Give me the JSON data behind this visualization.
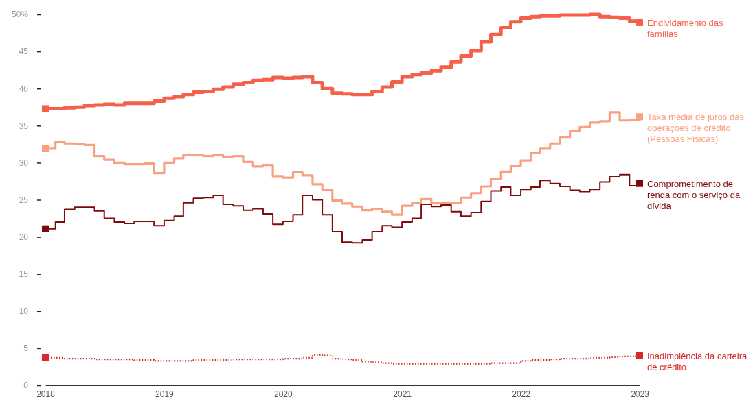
{
  "chart_data": {
    "type": "step",
    "xlim": [
      "2018-01",
      "2023-01"
    ],
    "xticks": [
      {
        "value": "2018-01",
        "label": "2018"
      },
      {
        "value": "2019-01",
        "label": "2019"
      },
      {
        "value": "2020-01",
        "label": "2020"
      },
      {
        "value": "2021-01",
        "label": "2021"
      },
      {
        "value": "2022-01",
        "label": "2022"
      },
      {
        "value": "2023-01",
        "label": "2023"
      }
    ],
    "ylim": [
      0,
      50
    ],
    "yticks": [
      0,
      5,
      10,
      15,
      20,
      25,
      30,
      35,
      40,
      45,
      {
        "value": 50,
        "label": "50%"
      }
    ],
    "grid": false,
    "x": [
      "2018-01",
      "2018-02",
      "2018-03",
      "2018-04",
      "2018-05",
      "2018-06",
      "2018-07",
      "2018-08",
      "2018-09",
      "2018-10",
      "2018-11",
      "2018-12",
      "2019-01",
      "2019-02",
      "2019-03",
      "2019-04",
      "2019-05",
      "2019-06",
      "2019-07",
      "2019-08",
      "2019-09",
      "2019-10",
      "2019-11",
      "2019-12",
      "2020-01",
      "2020-02",
      "2020-03",
      "2020-04",
      "2020-05",
      "2020-06",
      "2020-07",
      "2020-08",
      "2020-09",
      "2020-10",
      "2020-11",
      "2020-12",
      "2021-01",
      "2021-02",
      "2021-03",
      "2021-04",
      "2021-05",
      "2021-06",
      "2021-07",
      "2021-08",
      "2021-09",
      "2021-10",
      "2021-11",
      "2021-12",
      "2022-01",
      "2022-02",
      "2022-03",
      "2022-04",
      "2022-05",
      "2022-06",
      "2022-07",
      "2022-08",
      "2022-09",
      "2022-10",
      "2022-11",
      "2022-12",
      "2023-01"
    ],
    "series": [
      {
        "name": "Endividamento das famílias",
        "color": "#f4604a",
        "line_style": "solid",
        "values": [
          37.3,
          37.3,
          37.4,
          37.5,
          37.7,
          37.8,
          37.9,
          37.8,
          38.0,
          38.0,
          38.0,
          38.3,
          38.7,
          38.9,
          39.2,
          39.5,
          39.6,
          39.9,
          40.2,
          40.6,
          40.8,
          41.1,
          41.2,
          41.5,
          41.4,
          41.5,
          41.6,
          40.8,
          40.0,
          39.4,
          39.3,
          39.2,
          39.2,
          39.6,
          40.2,
          40.9,
          41.6,
          41.9,
          42.1,
          42.4,
          42.9,
          43.6,
          44.4,
          45.1,
          46.3,
          47.3,
          48.2,
          49.0,
          49.5,
          49.7,
          49.8,
          49.8,
          49.9,
          49.9,
          49.9,
          50.0,
          49.7,
          49.6,
          49.5,
          49.1,
          48.9
        ]
      },
      {
        "name": "Taxa média de juros das operações de crédito (Pessoas Físicas)",
        "color": "#f9a080",
        "line_style": "solid",
        "values": [
          31.9,
          32.8,
          32.6,
          32.5,
          32.4,
          30.9,
          30.4,
          30.0,
          29.8,
          29.8,
          29.9,
          28.6,
          30.0,
          30.6,
          31.1,
          31.1,
          30.9,
          31.1,
          30.8,
          30.9,
          30.1,
          29.5,
          29.7,
          28.2,
          28.0,
          28.7,
          28.3,
          27.1,
          26.3,
          24.9,
          24.5,
          24.1,
          23.6,
          23.8,
          23.4,
          23.0,
          24.2,
          24.6,
          25.1,
          24.6,
          24.6,
          24.6,
          25.3,
          25.9,
          26.8,
          27.8,
          28.8,
          29.6,
          30.3,
          31.3,
          31.9,
          32.6,
          33.4,
          34.3,
          34.8,
          35.4,
          35.6,
          36.8,
          35.7,
          35.8,
          36.2
        ]
      },
      {
        "name": "Comprometimento de renda com o serviço da dívida",
        "color": "#7f0a0a",
        "line_style": "solid",
        "values": [
          21.1,
          22.0,
          23.7,
          24.0,
          24.0,
          23.5,
          22.5,
          22.0,
          21.8,
          22.1,
          22.1,
          21.5,
          22.2,
          22.8,
          24.6,
          25.2,
          25.3,
          25.6,
          24.4,
          24.2,
          23.6,
          23.8,
          23.1,
          21.7,
          22.1,
          23.0,
          25.6,
          25.0,
          23.0,
          20.7,
          19.3,
          19.2,
          19.6,
          20.7,
          21.5,
          21.3,
          22.0,
          22.5,
          24.4,
          24.1,
          24.3,
          23.4,
          22.8,
          23.3,
          24.8,
          26.2,
          26.7,
          25.6,
          26.4,
          26.7,
          27.6,
          27.2,
          26.8,
          26.3,
          26.1,
          26.4,
          27.4,
          28.2,
          28.4,
          26.9,
          27.2
        ]
      },
      {
        "name": "Inadimplência da carteira de crédito",
        "color": "#d42a2a",
        "line_style": "dotted",
        "values": [
          3.7,
          3.7,
          3.6,
          3.6,
          3.6,
          3.5,
          3.5,
          3.5,
          3.5,
          3.4,
          3.4,
          3.3,
          3.3,
          3.3,
          3.3,
          3.4,
          3.4,
          3.4,
          3.4,
          3.5,
          3.5,
          3.5,
          3.5,
          3.5,
          3.6,
          3.6,
          3.7,
          4.1,
          4.0,
          3.6,
          3.5,
          3.4,
          3.2,
          3.1,
          3.0,
          2.9,
          2.9,
          2.9,
          2.9,
          2.9,
          2.9,
          2.9,
          2.9,
          2.9,
          2.9,
          3.0,
          3.0,
          3.0,
          3.3,
          3.4,
          3.4,
          3.5,
          3.6,
          3.6,
          3.6,
          3.7,
          3.7,
          3.8,
          3.9,
          3.9,
          4.0
        ]
      }
    ]
  }
}
